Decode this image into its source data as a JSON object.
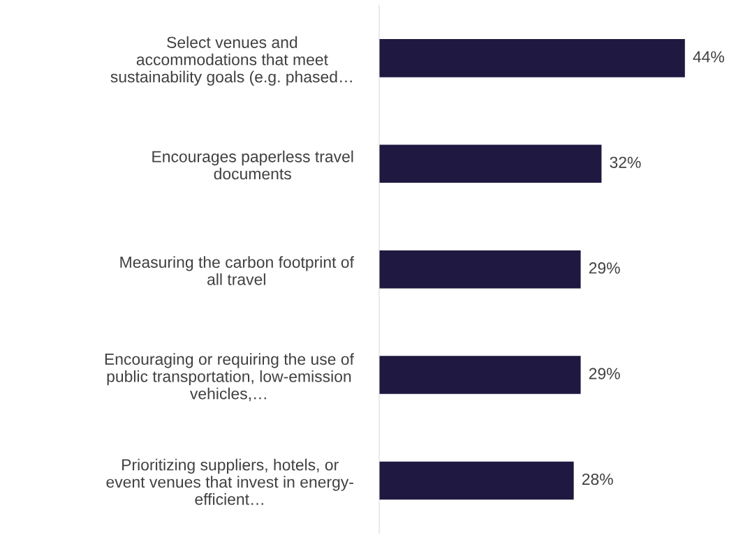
{
  "chart_data": {
    "type": "bar",
    "orientation": "horizontal",
    "categories": [
      "Select venues and\naccommodations that meet\nsustainability goals (e.g. phased…",
      "Encourages paperless travel\ndocuments",
      "Measuring the carbon footprint of\nall travel",
      "Encouraging or requiring the use of\npublic transportation, low-emission\nvehicles,…",
      "Prioritizing suppliers, hotels, or\nevent venues that invest in energy-\nefficient…"
    ],
    "values": [
      44,
      32,
      29,
      29,
      28
    ],
    "value_labels": [
      "44%",
      "32%",
      "29%",
      "29%",
      "28%"
    ],
    "color": "#1f1840",
    "grid": false,
    "legend": false
  }
}
